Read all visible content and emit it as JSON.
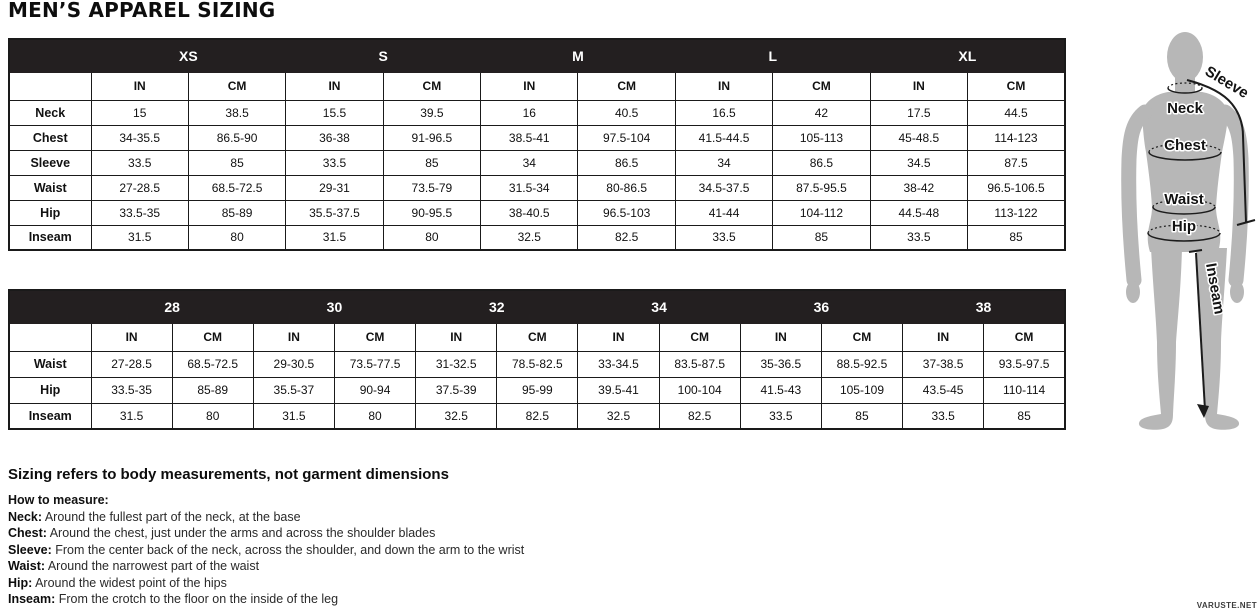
{
  "page": {
    "title": "MEN’S APPAREL SIZING",
    "watermark": "VARUSTE.NET"
  },
  "colors": {
    "band": "#231f20",
    "border": "#1a1a1a",
    "figure_gray": "#b7b7b7"
  },
  "size_table": {
    "sizes": [
      "XS",
      "S",
      "M",
      "L",
      "XL"
    ],
    "unit_headers": [
      "IN",
      "CM"
    ],
    "rows": [
      {
        "label": "Neck",
        "values": [
          "15",
          "38.5",
          "15.5",
          "39.5",
          "16",
          "40.5",
          "16.5",
          "42",
          "17.5",
          "44.5"
        ]
      },
      {
        "label": "Chest",
        "values": [
          "34-35.5",
          "86.5-90",
          "36-38",
          "91-96.5",
          "38.5-41",
          "97.5-104",
          "41.5-44.5",
          "105-113",
          "45-48.5",
          "114-123"
        ]
      },
      {
        "label": "Sleeve",
        "values": [
          "33.5",
          "85",
          "33.5",
          "85",
          "34",
          "86.5",
          "34",
          "86.5",
          "34.5",
          "87.5"
        ]
      },
      {
        "label": "Waist",
        "values": [
          "27-28.5",
          "68.5-72.5",
          "29-31",
          "73.5-79",
          "31.5-34",
          "80-86.5",
          "34.5-37.5",
          "87.5-95.5",
          "38-42",
          "96.5-106.5"
        ]
      },
      {
        "label": "Hip",
        "values": [
          "33.5-35",
          "85-89",
          "35.5-37.5",
          "90-95.5",
          "38-40.5",
          "96.5-103",
          "41-44",
          "104-112",
          "44.5-48",
          "113-122"
        ]
      },
      {
        "label": "Inseam",
        "values": [
          "31.5",
          "80",
          "31.5",
          "80",
          "32.5",
          "82.5",
          "33.5",
          "85",
          "33.5",
          "85"
        ]
      }
    ]
  },
  "waist_table": {
    "sizes": [
      "28",
      "30",
      "32",
      "34",
      "36",
      "38"
    ],
    "unit_headers": [
      "IN",
      "CM"
    ],
    "rows": [
      {
        "label": "Waist",
        "values": [
          "27-28.5",
          "68.5-72.5",
          "29-30.5",
          "73.5-77.5",
          "31-32.5",
          "78.5-82.5",
          "33-34.5",
          "83.5-87.5",
          "35-36.5",
          "88.5-92.5",
          "37-38.5",
          "93.5-97.5"
        ]
      },
      {
        "label": "Hip",
        "values": [
          "33.5-35",
          "85-89",
          "35.5-37",
          "90-94",
          "37.5-39",
          "95-99",
          "39.5-41",
          "100-104",
          "41.5-43",
          "105-109",
          "43.5-45",
          "110-114"
        ]
      },
      {
        "label": "Inseam",
        "values": [
          "31.5",
          "80",
          "31.5",
          "80",
          "32.5",
          "82.5",
          "32.5",
          "82.5",
          "33.5",
          "85",
          "33.5",
          "85"
        ]
      }
    ]
  },
  "notes": {
    "heading": "Sizing refers to body measurements, not garment dimensions",
    "subheading": "How to measure:",
    "items": [
      {
        "term": "Neck:",
        "text": "Around the fullest part of the neck, at the base"
      },
      {
        "term": "Chest:",
        "text": "Around the chest, just under the arms and across the shoulder blades"
      },
      {
        "term": "Sleeve:",
        "text": "From the center back of the neck, across the shoulder, and down the arm to the wrist"
      },
      {
        "term": "Waist:",
        "text": "Around the narrowest part of the waist"
      },
      {
        "term": "Hip:",
        "text": "Around the widest point of the hips"
      },
      {
        "term": "Inseam:",
        "text": "From the crotch to the floor on the inside of the leg"
      }
    ]
  },
  "figure": {
    "labels": {
      "sleeve": "Sleeve",
      "neck": "Neck",
      "chest": "Chest",
      "waist": "Waist",
      "hip": "Hip",
      "inseam": "Inseam"
    }
  }
}
